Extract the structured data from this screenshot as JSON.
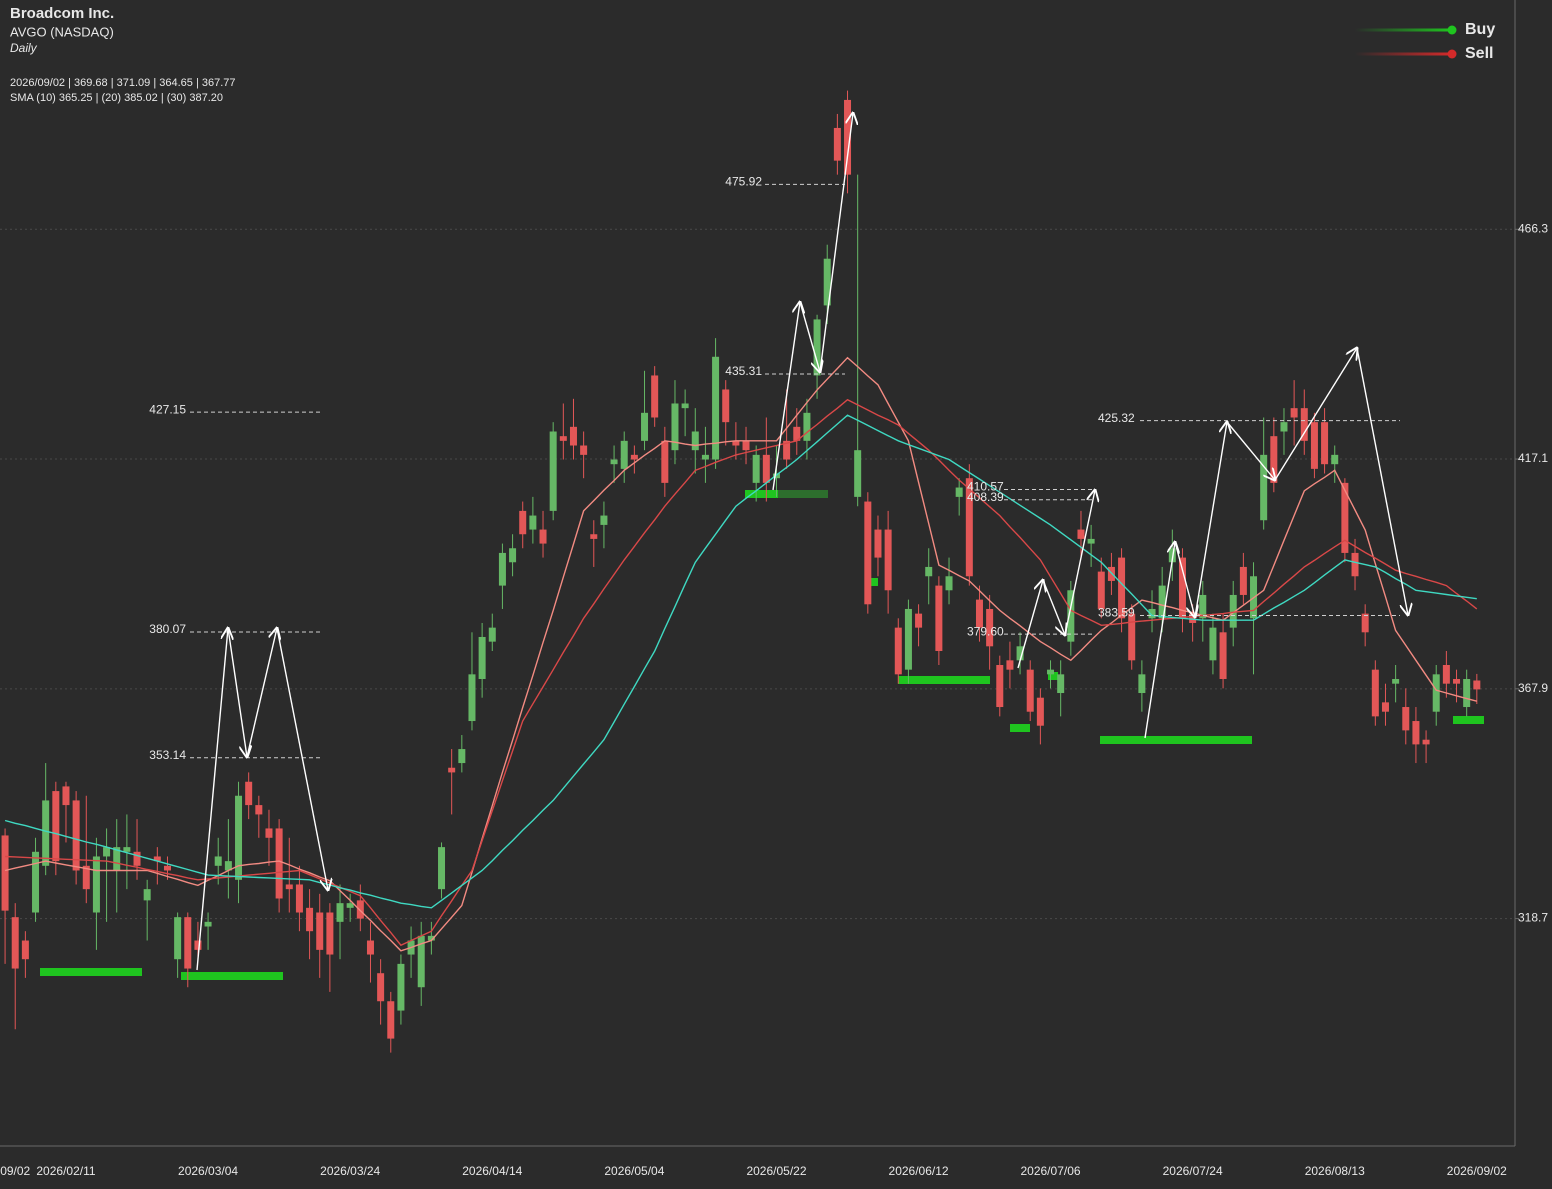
{
  "chart_data": {
    "type": "candlestick",
    "title": "Broadcom Inc.",
    "subtitle": "AVGO (NASDAQ)",
    "interval": "Daily",
    "ohlc_label": "2026/09/02 | 369.68 | 371.09 | 364.65 | 367.77",
    "sma_label": "SMA (10) 365.25 | (20) 385.02 | (30) 387.20",
    "categories": [
      null,
      "09/02",
      null,
      null,
      null,
      null,
      "2026/02/11",
      null,
      null,
      null,
      null,
      null,
      null,
      null,
      null,
      null,
      null,
      null,
      null,
      null,
      "2026/03/04",
      null,
      null,
      null,
      null,
      null,
      null,
      null,
      null,
      null,
      null,
      null,
      null,
      null,
      "2026/03/24",
      null,
      null,
      null,
      null,
      null,
      null,
      null,
      null,
      null,
      null,
      null,
      null,
      null,
      "2026/04/14",
      null,
      null,
      null,
      null,
      null,
      null,
      null,
      null,
      null,
      null,
      null,
      null,
      null,
      "2026/05/04",
      null,
      null,
      null,
      null,
      null,
      null,
      null,
      null,
      null,
      null,
      null,
      null,
      null,
      "2026/05/22",
      null,
      null,
      null,
      null,
      null,
      null,
      null,
      null,
      null,
      null,
      null,
      null,
      null,
      "2026/06/12",
      null,
      null,
      null,
      null,
      null,
      null,
      null,
      null,
      null,
      null,
      null,
      null,
      "2026/07/06",
      null,
      null,
      null,
      null,
      null,
      null,
      null,
      null,
      null,
      null,
      null,
      null,
      null,
      "2026/07/24",
      null,
      null,
      null,
      null,
      null,
      null,
      null,
      null,
      null,
      null,
      null,
      null,
      null,
      "2026/08/13",
      null,
      null,
      null,
      null,
      null,
      null,
      null,
      null,
      null,
      null,
      null,
      null,
      null,
      "2026/09/02"
    ],
    "open": [
      336.5,
      319,
      314,
      320,
      330,
      346,
      347,
      344,
      330,
      320,
      332,
      329,
      333,
      333,
      322.6,
      332,
      330,
      310,
      319,
      314,
      317,
      330,
      329,
      327,
      348,
      343,
      338,
      338,
      326,
      326,
      321,
      320,
      320,
      318,
      321,
      322.6,
      314,
      307,
      301,
      299,
      311,
      304,
      314,
      325,
      351,
      352,
      361,
      370,
      378,
      390,
      395,
      406,
      402,
      402,
      406,
      422,
      424,
      420,
      401,
      403,
      416,
      415,
      418,
      421,
      435,
      421,
      419,
      428,
      419,
      417,
      417,
      432,
      421,
      421,
      412,
      418,
      413,
      421,
      424,
      421,
      435,
      450,
      488,
      494,
      409,
      408,
      402,
      402,
      381,
      372,
      384,
      392,
      390,
      389,
      409,
      413,
      387,
      385,
      373,
      374,
      374,
      372,
      366,
      371,
      367,
      378,
      402,
      399,
      393,
      394,
      396,
      384,
      367,
      383,
      383,
      395,
      396,
      384,
      383,
      374,
      380,
      381,
      394,
      383,
      404,
      422,
      423,
      428,
      428,
      425,
      425,
      416,
      412,
      397,
      384,
      372,
      365,
      369,
      364,
      361,
      357,
      363,
      373,
      370,
      364,
      369.68
    ],
    "high": [
      338,
      322,
      316,
      336,
      352,
      348,
      348,
      346,
      345,
      336,
      338,
      340,
      341,
      340,
      327,
      334,
      332,
      320,
      320,
      318,
      320,
      336,
      340,
      348,
      350,
      345,
      342,
      340,
      336,
      330,
      325,
      324,
      322,
      326,
      324,
      326,
      318,
      310,
      303,
      311,
      317,
      318,
      318,
      335,
      355,
      358,
      380,
      382,
      384,
      399,
      401,
      408,
      409,
      406,
      425,
      429,
      430,
      423,
      404,
      408,
      420,
      423,
      420,
      436,
      437,
      424,
      434,
      432,
      428,
      424,
      443,
      434,
      425,
      424,
      420,
      426,
      420,
      432,
      428,
      430,
      448,
      463,
      491,
      496,
      478,
      410,
      405,
      406,
      383,
      387,
      386,
      398,
      392,
      396,
      413,
      416,
      390,
      388,
      375,
      378,
      380,
      374,
      368,
      374,
      374,
      391,
      406,
      403,
      396,
      397,
      398,
      386,
      374,
      389,
      394,
      402,
      398,
      386,
      391,
      384,
      384,
      391,
      397,
      395,
      426,
      426,
      428,
      434,
      432,
      427,
      428,
      420,
      413,
      400,
      386,
      374,
      369,
      373,
      368,
      364,
      359,
      373,
      376,
      372,
      372,
      371.09
    ],
    "low": [
      309,
      295,
      306,
      318,
      328,
      328,
      335,
      326,
      322,
      312,
      318,
      320,
      325,
      327,
      314,
      326,
      327,
      306,
      304,
      310,
      312,
      326,
      323,
      322,
      340,
      336,
      330,
      320,
      320,
      316,
      310,
      306,
      303,
      310,
      318,
      316,
      305,
      296,
      290,
      296,
      306,
      300,
      311,
      323,
      341,
      350,
      359,
      366,
      376,
      385,
      392,
      398,
      399,
      396,
      404,
      417,
      417,
      413,
      394,
      398,
      412,
      412,
      414,
      419,
      424,
      409,
      416,
      422,
      414,
      412,
      415,
      420,
      417,
      416,
      408,
      408,
      409,
      415,
      418,
      417,
      430,
      446,
      478,
      474,
      407,
      384,
      392,
      384,
      369,
      369,
      377,
      386,
      373,
      386,
      405,
      390,
      378,
      372,
      362,
      368,
      371,
      361,
      356,
      368,
      362,
      375,
      396,
      394,
      383,
      388,
      380,
      372,
      363,
      380,
      380,
      391,
      380,
      378,
      378,
      371,
      368,
      377,
      386,
      371,
      402,
      410,
      418,
      420,
      418,
      413,
      414,
      412,
      395,
      389,
      377,
      360,
      360,
      365,
      356,
      352,
      352,
      360,
      366,
      365,
      362,
      364.65
    ],
    "close": [
      320.4,
      308,
      310,
      333,
      344,
      331,
      343,
      329,
      325,
      332,
      334,
      334,
      334,
      330,
      325,
      331,
      329,
      319,
      308,
      312,
      318,
      332,
      331,
      345,
      343,
      341,
      336,
      323,
      325,
      320,
      316,
      312,
      311,
      322,
      322,
      318.7,
      311,
      301,
      293,
      309,
      314,
      315,
      315,
      334,
      350,
      355,
      371,
      379,
      381,
      397,
      398,
      401,
      405,
      399,
      423,
      421,
      420,
      418,
      400,
      405,
      417,
      421,
      417,
      427,
      426,
      412,
      429,
      429,
      423,
      418,
      439,
      425,
      420,
      419,
      418,
      412,
      414,
      417,
      421,
      427,
      447,
      460,
      481,
      478,
      419,
      386,
      396,
      389,
      371,
      385,
      381,
      394,
      376,
      392,
      411,
      392,
      381,
      377,
      364,
      372,
      377,
      363,
      360,
      372,
      371,
      389,
      400,
      400,
      385,
      391,
      383,
      374,
      371,
      385,
      390,
      398,
      383,
      382,
      388,
      381,
      370,
      388,
      388,
      392,
      418,
      412,
      425,
      426,
      421,
      415,
      416,
      418,
      397,
      392,
      380,
      362,
      363,
      370,
      359,
      356,
      356,
      371,
      369,
      369,
      370,
      367.77
    ],
    "up_color": "#66b866",
    "down_color": "#e35757",
    "lines": [
      {
        "color": "#f28b82",
        "values": [
          329,
          329.5,
          330,
          330.5,
          331,
          330.6,
          330.2,
          329.8,
          329.4,
          329.0,
          329,
          329,
          329,
          329,
          329,
          328.4,
          327.7,
          327.1,
          326.4,
          325.8,
          326.9,
          327.9,
          329.0,
          330.0,
          330.3,
          330.5,
          330.8,
          331.0,
          330.2,
          329.3,
          328.5,
          327.6,
          326.8,
          324.7,
          322.6,
          320.4,
          318.3,
          316.1,
          314.0,
          311.8,
          312.5,
          313.3,
          314.0,
          316.5,
          319.0,
          321.5,
          328.6,
          335.8,
          342.9,
          350.0,
          356.9,
          363.9,
          370.8,
          377.8,
          384.7,
          391.8,
          398.9,
          406.0,
          408.2,
          410.4,
          412.5,
          414.7,
          416.3,
          417.9,
          419.4,
          421.0,
          420.7,
          420.3,
          420.0,
          420.3,
          420.5,
          420.8,
          421.0,
          421,
          421,
          421,
          421,
          423.7,
          426.5,
          429.2,
          431.9,
          434.2,
          436.5,
          438.8,
          436.9,
          434.9,
          433.0,
          429.0,
          425.0,
          421.0,
          412.1,
          403.3,
          394.4,
          393.3,
          392.1,
          391.0,
          388.9,
          386.8,
          384.7,
          383.0,
          381.4,
          379.7,
          378.0,
          376.7,
          375.3,
          374.0,
          376.1,
          378.3,
          380.4,
          382.0,
          383.7,
          385.3,
          386.9,
          386.4,
          385.8,
          385.3,
          384.7,
          384.2,
          383.6,
          383.1,
          382.6,
          384.2,
          385.8,
          387.4,
          389.0,
          394.3,
          399.7,
          405.0,
          410.3,
          411.8,
          413.2,
          414.7,
          410.4,
          406.2,
          401.9,
          394.7,
          387.6,
          380.4,
          377.2,
          374.0,
          370.8,
          367.6,
          367.0,
          366.4,
          365.8,
          365.25
        ]
      },
      {
        "color": "#d94848",
        "values": [
          332.0,
          331.9,
          331.8,
          331.7,
          331.6,
          331.5,
          331.4,
          331.3,
          331.2,
          331.1,
          331.0,
          330.6,
          330.1,
          329.7,
          329.2,
          328.8,
          328.3,
          327.9,
          327.4,
          327.0,
          327.2,
          327.4,
          327.6,
          327.8,
          328.0,
          328.2,
          328.4,
          328.6,
          328.8,
          329.0,
          328.1,
          327.2,
          326.3,
          325.4,
          324.5,
          323.6,
          321.0,
          318.3,
          315.7,
          313.0,
          314.0,
          315.0,
          316.0,
          319.3,
          322.5,
          325.8,
          329.0,
          335.4,
          341.8,
          348.2,
          354.6,
          361.0,
          364.7,
          368.3,
          372.0,
          375.7,
          379.3,
          383.0,
          386.1,
          389.3,
          392.4,
          395.5,
          398.4,
          401.3,
          404.1,
          407.0,
          409.6,
          412.1,
          414.7,
          415.5,
          416.4,
          417.2,
          418.0,
          418.5,
          419.0,
          419.5,
          420.0,
          420.5,
          421.0,
          422.8,
          424.5,
          426.3,
          428.0,
          429.8,
          428.7,
          427.6,
          426.5,
          425.5,
          424.4,
          422.6,
          420.8,
          419.0,
          416.9,
          414.7,
          412.6,
          410.7,
          408.8,
          406.9,
          405.0,
          402.6,
          400.3,
          397.9,
          395.5,
          391.9,
          388.3,
          384.7,
          383.6,
          382.6,
          381.5,
          381.7,
          381.9,
          382.2,
          382.4,
          382.6,
          382.8,
          383.0,
          383.2,
          383.4,
          383.6,
          383.8,
          384.0,
          384.3,
          384.5,
          384.7,
          386.6,
          388.4,
          390.3,
          392.1,
          394.0,
          395.4,
          396.9,
          398.3,
          399.7,
          398.4,
          397.1,
          395.9,
          394.6,
          393.3,
          392.6,
          392.0,
          391.3,
          390.7,
          390.0,
          388.3,
          386.7,
          385.02
        ]
      },
      {
        "color": "#3fd9c2",
        "values": [
          339.7,
          339.1,
          338.6,
          338.0,
          337.4,
          336.9,
          336.3,
          335.7,
          335.1,
          334.6,
          334.0,
          333.4,
          332.8,
          332.2,
          331.6,
          331.0,
          330.4,
          329.8,
          329.2,
          328.6,
          328.0,
          327.9,
          327.8,
          327.7,
          327.6,
          327.5,
          327.4,
          327.3,
          327.2,
          327.1,
          327.0,
          326.4,
          325.9,
          325.3,
          324.8,
          324.2,
          323.7,
          323.1,
          322.6,
          322.0,
          321.7,
          321.3,
          321.0,
          322.6,
          324.2,
          325.8,
          327.4,
          329.0,
          331.1,
          333.3,
          335.4,
          337.6,
          339.7,
          341.9,
          344.0,
          346.6,
          349.2,
          351.8,
          354.4,
          357.0,
          360.8,
          364.6,
          368.4,
          372.2,
          376.0,
          380.8,
          385.5,
          390.3,
          395.0,
          398,
          401,
          404,
          407,
          408.7,
          410.3,
          412.0,
          413.7,
          415.3,
          417.0,
          418.9,
          420.8,
          422.7,
          424.6,
          426.5,
          425.4,
          424.3,
          423.2,
          422.1,
          421.0,
          420.2,
          419.4,
          418.6,
          417.8,
          417.0,
          415.6,
          414.2,
          412.8,
          411.4,
          410.0,
          408.6,
          407.2,
          405.8,
          404.4,
          403.0,
          401.4,
          399.8,
          398.2,
          396.6,
          395.0,
          392.7,
          390.4,
          388.2,
          385.9,
          383.6,
          383.4,
          383.2,
          383.0,
          382.8,
          382.6,
          382.6,
          382.6,
          382.6,
          382.6,
          382.6,
          383.9,
          385.2,
          386.4,
          387.7,
          389.0,
          390.6,
          392.3,
          393.9,
          395.5,
          395.0,
          394.5,
          394.0,
          392.8,
          391.5,
          390.3,
          389.0,
          388.7,
          388.4,
          388.1,
          387.8,
          387.5,
          387.2
        ]
      }
    ],
    "levels": [
      427.15,
      380.07,
      353.14,
      475.92,
      435.31,
      410.57,
      408.39,
      {
        "value": 379.6,
        "label": "379.60"
      },
      383.59,
      425.32
    ],
    "ylim": [
      270.0,
      515.4
    ],
    "yticks": [
      318.7,
      367.9,
      417.1,
      466.3
    ],
    "grid": true,
    "legend": [
      {
        "name": "Buy",
        "color": "#1fc41f"
      },
      {
        "name": "Sell",
        "color": "#d42a2a"
      }
    ],
    "legend_position": "top-right"
  }
}
